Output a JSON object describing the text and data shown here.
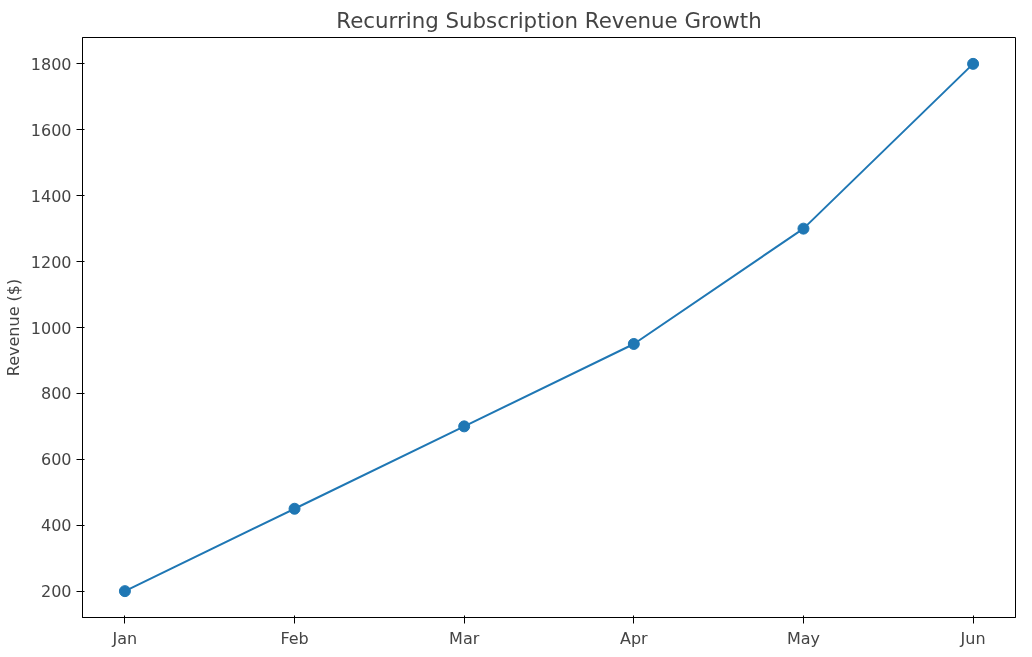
{
  "chart_data": {
    "type": "line",
    "title": "Recurring Subscription Revenue Growth",
    "ylabel": "Revenue ($)",
    "categories": [
      "Jan",
      "Feb",
      "Mar",
      "Apr",
      "May",
      "Jun"
    ],
    "series": [
      {
        "color": "#1f77b4",
        "values": [
          200,
          450,
          700,
          950,
          1300,
          1800
        ]
      }
    ],
    "ylim": [
      120,
      1880
    ],
    "yticks": [
      200,
      400,
      600,
      800,
      1000,
      1200,
      1400,
      1600,
      1800
    ],
    "grid": false,
    "marker": "circle",
    "line_style": "solid"
  }
}
